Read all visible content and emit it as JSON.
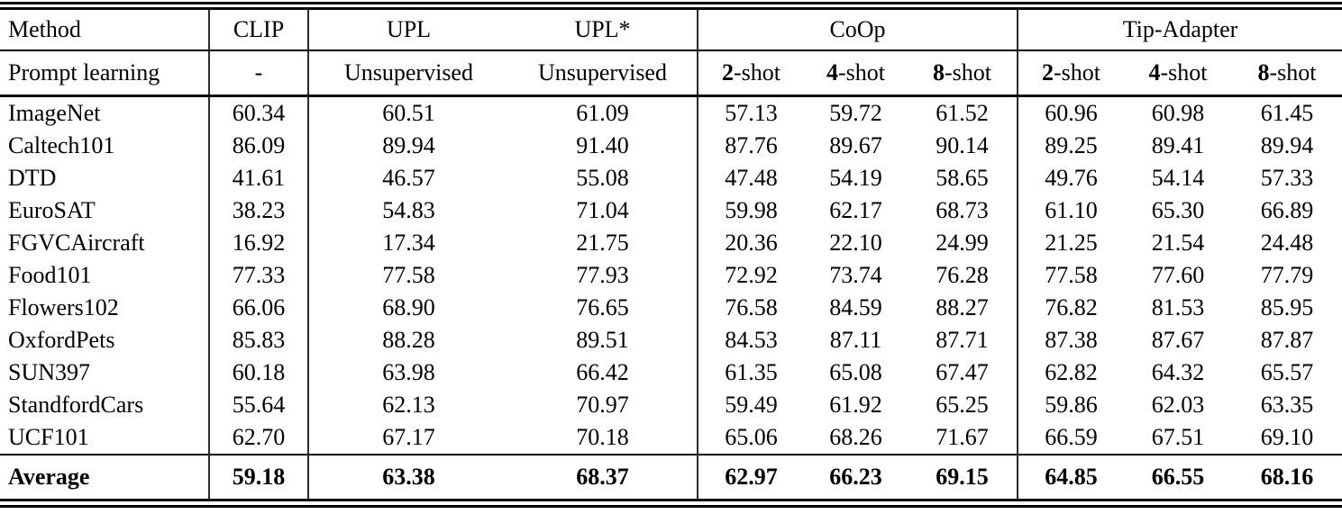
{
  "page": {
    "background_color": "#ffffff",
    "text_color": "#000000",
    "rule_color": "#000000"
  },
  "table": {
    "header": {
      "method": "Method",
      "clip": "CLIP",
      "upl": "UPL",
      "upl_star": "UPL*",
      "coop": "CoOp",
      "tip_adapter": "Tip-Adapter",
      "prompt_learning": "Prompt learning",
      "clip_prompt": "-",
      "upl_prompt": "Unsupervised",
      "upl_star_prompt": "Unsupervised",
      "shots": [
        {
          "num": "2",
          "suffix": "-shot"
        },
        {
          "num": "4",
          "suffix": "-shot"
        },
        {
          "num": "8",
          "suffix": "-shot"
        }
      ]
    },
    "value_columns": [
      "CLIP",
      "UPL",
      "UPL*",
      "CoOp 2-shot",
      "CoOp 4-shot",
      "CoOp 8-shot",
      "Tip-Adapter 2-shot",
      "Tip-Adapter 4-shot",
      "Tip-Adapter 8-shot"
    ],
    "rows": [
      {
        "dataset": "ImageNet",
        "values": [
          "60.34",
          "60.51",
          "61.09",
          "57.13",
          "59.72",
          "61.52",
          "60.96",
          "60.98",
          "61.45"
        ]
      },
      {
        "dataset": "Caltech101",
        "values": [
          "86.09",
          "89.94",
          "91.40",
          "87.76",
          "89.67",
          "90.14",
          "89.25",
          "89.41",
          "89.94"
        ]
      },
      {
        "dataset": "DTD",
        "values": [
          "41.61",
          "46.57",
          "55.08",
          "47.48",
          "54.19",
          "58.65",
          "49.76",
          "54.14",
          "57.33"
        ]
      },
      {
        "dataset": "EuroSAT",
        "values": [
          "38.23",
          "54.83",
          "71.04",
          "59.98",
          "62.17",
          "68.73",
          "61.10",
          "65.30",
          "66.89"
        ]
      },
      {
        "dataset": "FGVCAircraft",
        "values": [
          "16.92",
          "17.34",
          "21.75",
          "20.36",
          "22.10",
          "24.99",
          "21.25",
          "21.54",
          "24.48"
        ]
      },
      {
        "dataset": "Food101",
        "values": [
          "77.33",
          "77.58",
          "77.93",
          "72.92",
          "73.74",
          "76.28",
          "77.58",
          "77.60",
          "77.79"
        ]
      },
      {
        "dataset": "Flowers102",
        "values": [
          "66.06",
          "68.90",
          "76.65",
          "76.58",
          "84.59",
          "88.27",
          "76.82",
          "81.53",
          "85.95"
        ]
      },
      {
        "dataset": "OxfordPets",
        "values": [
          "85.83",
          "88.28",
          "89.51",
          "84.53",
          "87.11",
          "87.71",
          "87.38",
          "87.67",
          "87.87"
        ]
      },
      {
        "dataset": "SUN397",
        "values": [
          "60.18",
          "63.98",
          "66.42",
          "61.35",
          "65.08",
          "67.47",
          "62.82",
          "64.32",
          "65.57"
        ]
      },
      {
        "dataset": "StandfordCars",
        "values": [
          "55.64",
          "62.13",
          "70.97",
          "59.49",
          "61.92",
          "65.25",
          "59.86",
          "62.03",
          "63.35"
        ]
      },
      {
        "dataset": "UCF101",
        "values": [
          "62.70",
          "67.17",
          "70.18",
          "65.06",
          "68.26",
          "71.67",
          "66.59",
          "67.51",
          "69.10"
        ]
      }
    ],
    "average": {
      "label": "Average",
      "values": [
        "59.18",
        "63.38",
        "68.37",
        "62.97",
        "66.23",
        "69.15",
        "64.85",
        "66.55",
        "68.16"
      ]
    }
  }
}
